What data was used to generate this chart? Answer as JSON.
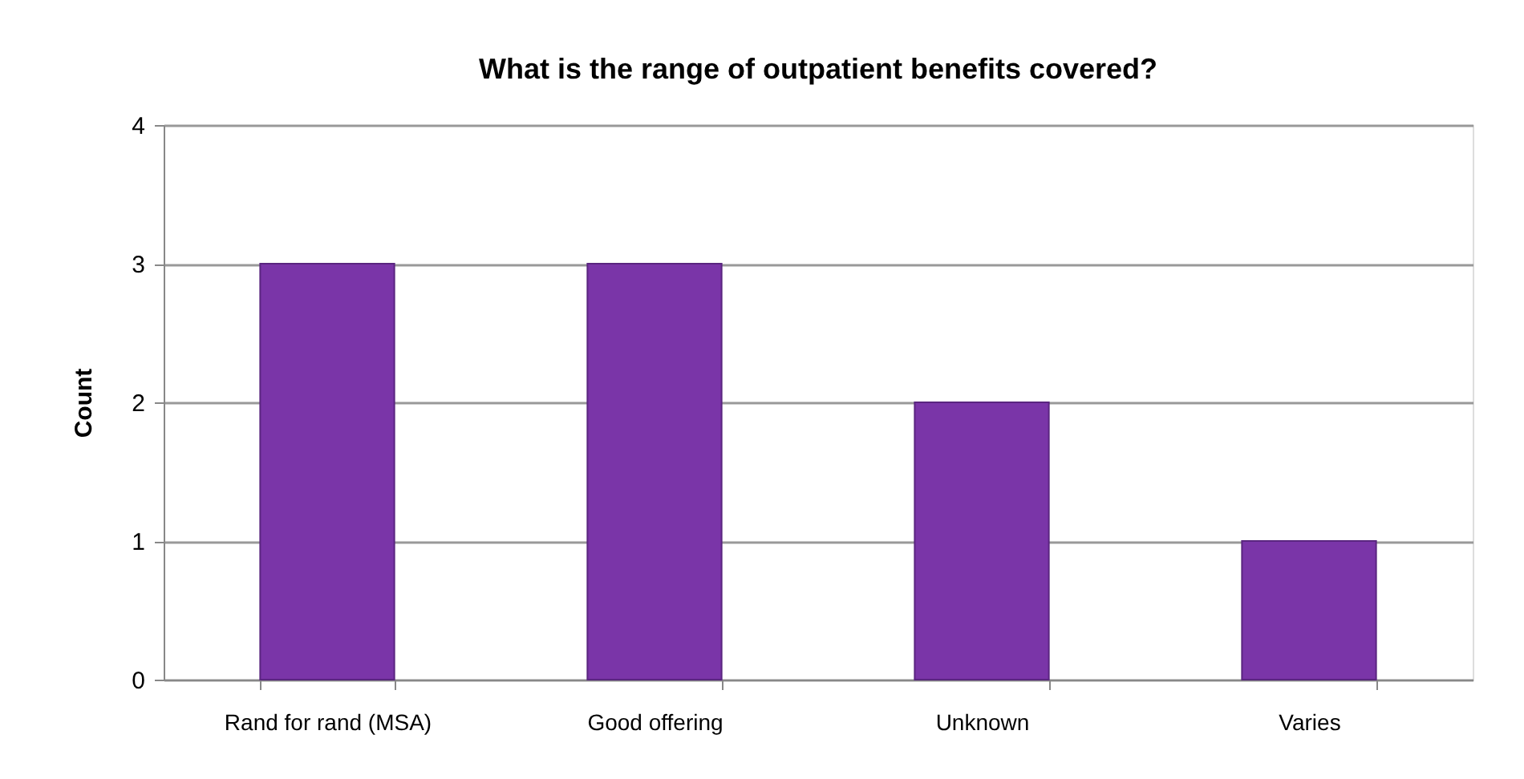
{
  "chart_data": {
    "type": "bar",
    "title": "What is the range of outpatient benefits covered?",
    "ylabel": "Count",
    "categories": [
      "Rand for rand (MSA)",
      "Good offering",
      "Unknown",
      "Varies"
    ],
    "values": [
      3,
      3,
      2,
      1
    ],
    "color": "#7a35a8",
    "ylim": [
      0,
      4
    ],
    "yticks": [
      0,
      1,
      2,
      3,
      4
    ],
    "grid": "y"
  }
}
